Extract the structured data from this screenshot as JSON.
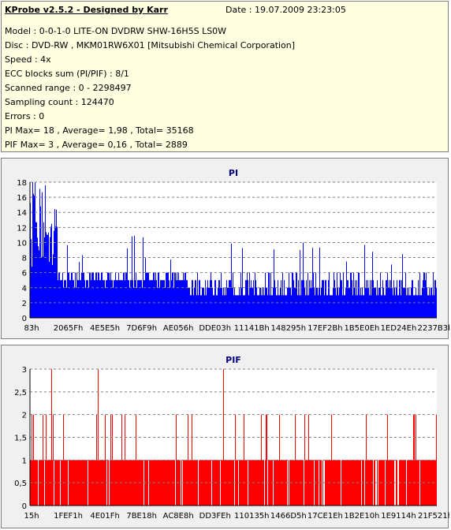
{
  "info": {
    "title": "KProbe v2.5.2 - Designed by Karr",
    "date": "Date : 19.07.2009 23:23:05",
    "lines": [
      "Model : 0-0-1-0 LITE-ON DVDRW SHW-16H5S  LS0W",
      "Disc : DVD-RW , MKM01RW6X01 [Mitsubishi Chemical Corporation]",
      "Speed : 4x",
      "ECC blocks sum (PI/PIF) : 8/1",
      "Scanned range : 0 - 2298497",
      "Sampling count : 124470",
      "Errors : 0",
      "PI Max= 18 , Average= 1,98 , Total= 35168",
      "PIF Max= 3 , Average= 0,16 , Total= 2889"
    ]
  },
  "colors": {
    "pi": "#0000ff",
    "pif": "#ff0000",
    "title": "#000080",
    "panel": "#f0f0f0",
    "info_bg": "#ffffe1"
  },
  "chart_data": [
    {
      "type": "bar",
      "title": "PI",
      "x_tick_labels": [
        "83h",
        "2065Fh",
        "4E5E5h",
        "7D6F9h",
        "AE056h",
        "DDE03h",
        "11141Bh",
        "148295h",
        "17EF2Bh",
        "1B5E0Eh",
        "1ED24Eh",
        "2237B3h"
      ],
      "y_tick_labels": [
        "0",
        "2",
        "4",
        "6",
        "8",
        "10",
        "12",
        "14",
        "16",
        "18"
      ],
      "ylim": [
        0,
        18
      ],
      "grid": true,
      "max": 18,
      "average": 1.98,
      "typical_range": [
        3,
        6
      ]
    },
    {
      "type": "bar",
      "title": "PIF",
      "x_tick_labels": [
        "15h",
        "1FEF1h",
        "4E01Fh",
        "7BE18h",
        "AC8E8h",
        "DD3FEh",
        "110135h",
        "1466D5h",
        "17CE1Eh",
        "1B2E10h",
        "1E9114h",
        "21F521h"
      ],
      "y_tick_labels": [
        "0",
        "0,5",
        "1",
        "1,5",
        "2",
        "2,5",
        "3"
      ],
      "ylim": [
        0,
        3
      ],
      "grid": true,
      "max": 3,
      "average": 0.16,
      "typical_range": [
        1,
        1
      ]
    }
  ]
}
